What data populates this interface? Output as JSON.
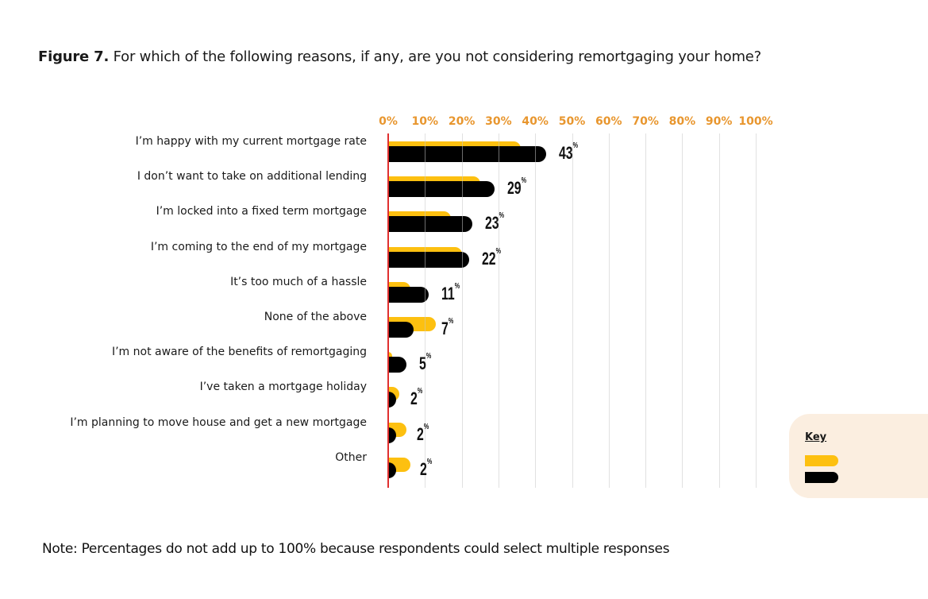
{
  "title": {
    "figure_label": "Figure 7.",
    "text": "For which of the following reasons, if any, are you not considering remortgaging your home?"
  },
  "axis": {
    "ticks": [
      "0%",
      "10%",
      "20%",
      "30%",
      "40%",
      "50%",
      "60%",
      "70%",
      "80%",
      "90%",
      "100%"
    ]
  },
  "key": {
    "title": "Key",
    "series": [
      {
        "color": "#fdc010",
        "label": ""
      },
      {
        "color": "#000000",
        "label": ""
      }
    ]
  },
  "note": "Note: Percentages do not add up to 100% because respondents could select multiple responses",
  "rows": [
    {
      "label": "I’m happy with my current mortgage rate",
      "value_label": "43",
      "suffix": "%"
    },
    {
      "label": "I don’t want to take on additional lending",
      "value_label": "29",
      "suffix": "%"
    },
    {
      "label": "I’m locked into a fixed term mortgage",
      "value_label": "23",
      "suffix": "%"
    },
    {
      "label": "I’m coming to the end of my mortgage",
      "value_label": "22",
      "suffix": "%"
    },
    {
      "label": "It’s too much of a hassle",
      "value_label": "11",
      "suffix": "%"
    },
    {
      "label": "None of the above ",
      "value_label": "7",
      "suffix": "%"
    },
    {
      "label": "I’m not aware of the benefits of remortgaging",
      "value_label": "5",
      "suffix": "%"
    },
    {
      "label": "I’ve taken a mortgage holiday",
      "value_label": "2",
      "suffix": "%"
    },
    {
      "label": "I’m planning to move house and get a new mortgage",
      "value_label": "2",
      "suffix": "%"
    },
    {
      "label": "Other",
      "value_label": "2",
      "suffix": "%"
    }
  ],
  "chart_data": {
    "type": "bar",
    "orientation": "horizontal",
    "title": "Figure 7. For which of the following reasons, if any, are you not considering remortgaging your home?",
    "xlabel": "",
    "ylabel": "",
    "xlim": [
      0,
      100
    ],
    "x_ticks": [
      "0%",
      "10%",
      "20%",
      "30%",
      "40%",
      "50%",
      "60%",
      "70%",
      "80%",
      "90%",
      "100%"
    ],
    "grid": true,
    "legend_position": "bottom-right",
    "categories": [
      "I’m happy with my current mortgage rate",
      "I don’t want to take on additional lending",
      "I’m locked into a fixed term mortgage",
      "I’m coming to the end of my mortgage",
      "It’s too much of a hassle",
      "None of the above",
      "I’m not aware of the benefits of remortgaging",
      "I’ve taken a mortgage holiday",
      "I’m planning to move house and get a new mortgage",
      "Other"
    ],
    "series": [
      {
        "name": "Yellow series (unlabeled in key)",
        "color": "#fdc010",
        "values": [
          36,
          25,
          17,
          20,
          6,
          13,
          1,
          3,
          5,
          6
        ],
        "labeled": false
      },
      {
        "name": "Black series (unlabeled in key)",
        "color": "#000000",
        "values": [
          43,
          29,
          23,
          22,
          11,
          7,
          5,
          2,
          2,
          2
        ],
        "labeled": true
      }
    ],
    "annotations": [
      "43%",
      "29%",
      "23%",
      "22%",
      "11%",
      "7%",
      "5%",
      "2%",
      "2%",
      "2%"
    ],
    "note": "Note: Percentages do not add up to 100% because respondents could select multiple responses"
  }
}
